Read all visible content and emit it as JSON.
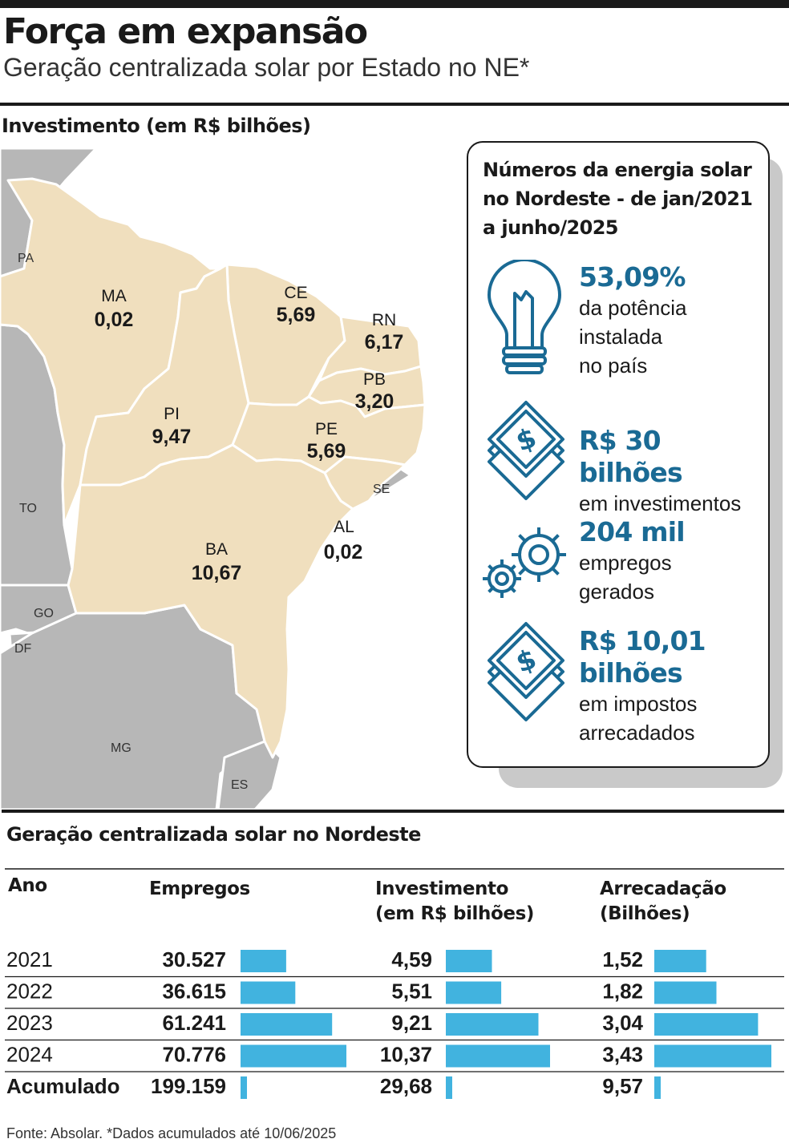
{
  "header": {
    "title": "Força em expansão",
    "subtitle": "Geração centralizada solar por Estado no NE*"
  },
  "map_section": {
    "title": "Investimento (em R$ bilhões)"
  },
  "colors": {
    "highlight_state": "#f0dfbe",
    "neighbor_state": "#b7b7b7",
    "border": "#ffffff",
    "accent": "#1a6a94",
    "bar": "#41b3df",
    "text": "#1a1a1a"
  },
  "chart_data": [
    {
      "type": "map",
      "title": "Investimento (em R$ bilhões)",
      "states": [
        {
          "code": "MA",
          "value": "0,02"
        },
        {
          "code": "CE",
          "value": "5,69"
        },
        {
          "code": "RN",
          "value": "6,17"
        },
        {
          "code": "PB",
          "value": "3,20"
        },
        {
          "code": "PI",
          "value": "9,47"
        },
        {
          "code": "PE",
          "value": "5,69"
        },
        {
          "code": "AL",
          "value": "0,02"
        },
        {
          "code": "BA",
          "value": "10,67"
        }
      ],
      "neighbors": [
        "PA",
        "TO",
        "GO",
        "DF",
        "MG",
        "ES",
        "SE"
      ]
    },
    {
      "type": "table",
      "title": "Geração centralizada solar no Nordeste",
      "columns": [
        "Ano",
        "Empregos",
        "Investimento (em R$ bilhões)",
        "Arrecadação (Bilhões)"
      ],
      "rows": [
        {
          "year": "2021",
          "empregos": 30527,
          "empregos_label": "30.527",
          "investimento": 4.59,
          "investimento_label": "4,59",
          "arrecadacao": 1.52,
          "arrecadacao_label": "1,52"
        },
        {
          "year": "2022",
          "empregos": 36615,
          "empregos_label": "36.615",
          "investimento": 5.51,
          "investimento_label": "5,51",
          "arrecadacao": 1.82,
          "arrecadacao_label": "1,82"
        },
        {
          "year": "2023",
          "empregos": 61241,
          "empregos_label": "61.241",
          "investimento": 9.21,
          "investimento_label": "9,21",
          "arrecadacao": 3.04,
          "arrecadacao_label": "3,04"
        },
        {
          "year": "2024",
          "empregos": 70776,
          "empregos_label": "70.776",
          "investimento": 10.37,
          "investimento_label": "10,37",
          "arrecadacao": 3.43,
          "arrecadacao_label": "3,43"
        },
        {
          "year": "Acumulado",
          "empregos": 199159,
          "empregos_label": "199.159",
          "investimento": 29.68,
          "investimento_label": "29,68",
          "arrecadacao": 9.57,
          "arrecadacao_label": "9,57"
        }
      ]
    }
  ],
  "infobox": {
    "title": "Números da energia solar no Nordeste - de jan/2021 a junho/2025",
    "stats": [
      {
        "icon": "lightbulb-icon",
        "big": "53,09%",
        "desc": [
          "da potência",
          "instalada",
          "no país"
        ]
      },
      {
        "icon": "money-stack-icon",
        "big": "R$ 30 bilhões",
        "desc": [
          "em investimentos"
        ]
      },
      {
        "icon": "gears-icon",
        "big": "204 mil",
        "desc": [
          "empregos",
          "gerados"
        ]
      },
      {
        "icon": "money-stack-icon",
        "big_lines": [
          "R$ 10,01",
          "bilhões"
        ],
        "desc": [
          "em impostos",
          "arrecadados"
        ]
      }
    ]
  },
  "footer": {
    "source": "Fonte: Absolar. *Dados acumulados até 10/06/2025"
  }
}
